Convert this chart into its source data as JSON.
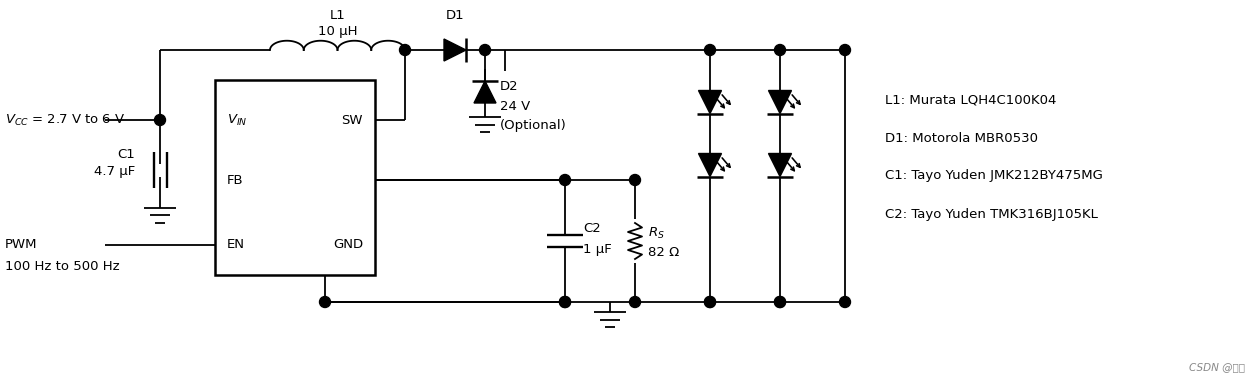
{
  "bg_color": "#ffffff",
  "line_color": "#000000",
  "figsize": [
    12.57,
    3.8
  ],
  "dpi": 100,
  "bom_lines": [
    "L1: Murata LQH4C100K04",
    "D1: Motorola MBR0530",
    "C1: Tayo Yuden JMK212BY475MG",
    "C2: Tayo Yuden TMK316BJ105KL"
  ],
  "watermark": "CSDN @易板"
}
